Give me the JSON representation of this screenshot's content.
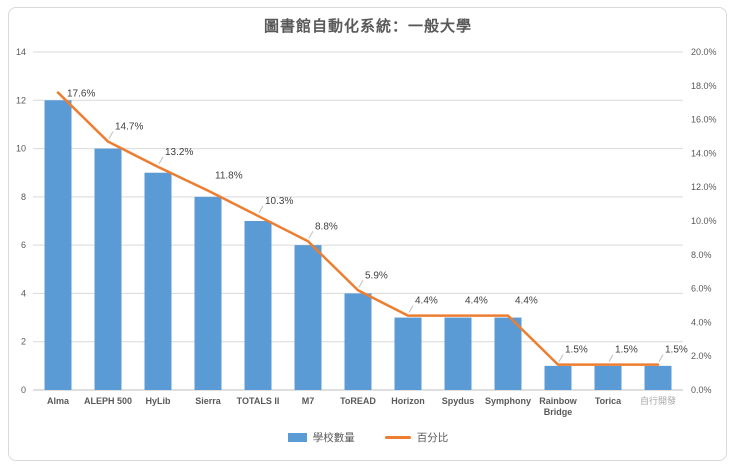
{
  "chart_data": {
    "type": "bar",
    "combo": "bar+line",
    "title": "圖書館自動化系統：一般大學",
    "categories": [
      "Alma",
      "ALEPH 500",
      "HyLib",
      "Sierra",
      "TOTALS II",
      "M7",
      "ToREAD",
      "Horizon",
      "Spydus",
      "Symphony",
      "Rainbow Bridge",
      "Torica",
      "自行開發"
    ],
    "muted_category_index": 12,
    "series": [
      {
        "name": "學校數量",
        "type": "bar",
        "axis": "left",
        "color": "#5b9bd5",
        "values": [
          12,
          10,
          9,
          8,
          7,
          6,
          4,
          3,
          3,
          3,
          1,
          1,
          1
        ]
      },
      {
        "name": "百分比",
        "type": "line",
        "axis": "right",
        "color": "#ed7d31",
        "values": [
          17.6,
          14.7,
          13.2,
          11.8,
          10.3,
          8.8,
          5.9,
          4.4,
          4.4,
          4.4,
          1.5,
          1.5,
          1.5
        ],
        "data_labels": [
          "17.6%",
          "14.7%",
          "13.2%",
          "11.8%",
          "10.3%",
          "8.8%",
          "5.9%",
          "4.4%",
          "4.4%",
          "4.4%",
          "1.5%",
          "1.5%",
          "1.5%"
        ]
      }
    ],
    "left_axis": {
      "min": 0,
      "max": 14,
      "step": 2,
      "tick_labels": [
        "0",
        "2",
        "4",
        "6",
        "8",
        "10",
        "12",
        "14"
      ]
    },
    "right_axis": {
      "min": 0,
      "max": 20,
      "step": 2,
      "tick_labels": [
        "0.0%",
        "2.0%",
        "4.0%",
        "6.0%",
        "8.0%",
        "10.0%",
        "12.0%",
        "14.0%",
        "16.0%",
        "18.0%",
        "20.0%"
      ]
    },
    "grid": true,
    "legend_position": "bottom",
    "colors": {
      "grid": "#d9d9d9",
      "baseline": "#bfbfbf",
      "axis_text": "#595959",
      "data_label": "#404040",
      "leader": "#bfbfbf",
      "category_label": "#595959",
      "muted_category_label": "#a6a6a6",
      "title": "#595959",
      "frame_border": "#d9d9d9"
    }
  }
}
